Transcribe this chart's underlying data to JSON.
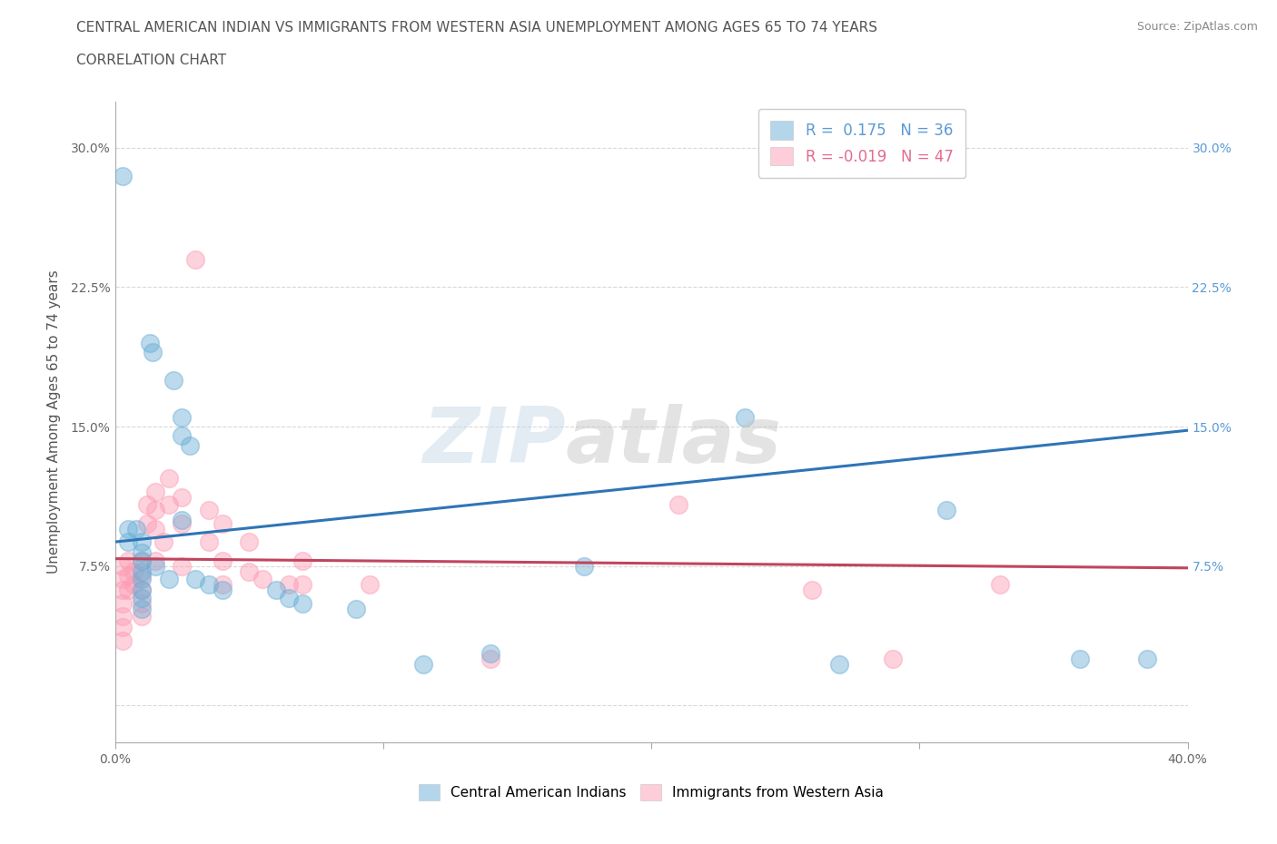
{
  "title_line1": "CENTRAL AMERICAN INDIAN VS IMMIGRANTS FROM WESTERN ASIA UNEMPLOYMENT AMONG AGES 65 TO 74 YEARS",
  "title_line2": "CORRELATION CHART",
  "source_text": "Source: ZipAtlas.com",
  "ylabel": "Unemployment Among Ages 65 to 74 years",
  "xlim": [
    0.0,
    0.4
  ],
  "ylim": [
    -0.02,
    0.325
  ],
  "xticks": [
    0.0,
    0.1,
    0.2,
    0.3,
    0.4
  ],
  "xticklabels": [
    "0.0%",
    "",
    "",
    "",
    "40.0%"
  ],
  "yticks": [
    0.0,
    0.075,
    0.15,
    0.225,
    0.3
  ],
  "yticklabels": [
    "",
    "7.5%",
    "15.0%",
    "22.5%",
    "30.0%"
  ],
  "legend_entries": [
    {
      "label": "R =  0.175   N = 36",
      "color": "#5b9bd5"
    },
    {
      "label": "R = -0.019   N = 47",
      "color": "#e36c8e"
    }
  ],
  "blue_color": "#5b9bd5",
  "pink_color": "#f4a7b9",
  "blue_scatter_color": "#6baed6",
  "pink_scatter_color": "#fc9cb4",
  "blue_line_color": "#2e75b6",
  "pink_line_color": "#c0455e",
  "background_color": "#ffffff",
  "grid_color": "#d0d0d0",
  "blue_scatter": [
    [
      0.003,
      0.285
    ],
    [
      0.013,
      0.195
    ],
    [
      0.014,
      0.19
    ],
    [
      0.022,
      0.175
    ],
    [
      0.025,
      0.155
    ],
    [
      0.025,
      0.145
    ],
    [
      0.025,
      0.1
    ],
    [
      0.028,
      0.14
    ],
    [
      0.005,
      0.095
    ],
    [
      0.005,
      0.088
    ],
    [
      0.008,
      0.095
    ],
    [
      0.01,
      0.088
    ],
    [
      0.01,
      0.082
    ],
    [
      0.01,
      0.078
    ],
    [
      0.01,
      0.072
    ],
    [
      0.01,
      0.068
    ],
    [
      0.01,
      0.062
    ],
    [
      0.01,
      0.058
    ],
    [
      0.01,
      0.052
    ],
    [
      0.015,
      0.075
    ],
    [
      0.02,
      0.068
    ],
    [
      0.03,
      0.068
    ],
    [
      0.035,
      0.065
    ],
    [
      0.04,
      0.062
    ],
    [
      0.06,
      0.062
    ],
    [
      0.065,
      0.058
    ],
    [
      0.07,
      0.055
    ],
    [
      0.09,
      0.052
    ],
    [
      0.115,
      0.022
    ],
    [
      0.14,
      0.028
    ],
    [
      0.175,
      0.075
    ],
    [
      0.235,
      0.155
    ],
    [
      0.27,
      0.022
    ],
    [
      0.31,
      0.105
    ],
    [
      0.36,
      0.025
    ],
    [
      0.385,
      0.025
    ]
  ],
  "pink_scatter": [
    [
      0.003,
      0.075
    ],
    [
      0.003,
      0.068
    ],
    [
      0.003,
      0.062
    ],
    [
      0.003,
      0.055
    ],
    [
      0.003,
      0.048
    ],
    [
      0.003,
      0.042
    ],
    [
      0.003,
      0.035
    ],
    [
      0.005,
      0.078
    ],
    [
      0.005,
      0.07
    ],
    [
      0.005,
      0.062
    ],
    [
      0.007,
      0.072
    ],
    [
      0.007,
      0.065
    ],
    [
      0.01,
      0.078
    ],
    [
      0.01,
      0.07
    ],
    [
      0.01,
      0.062
    ],
    [
      0.01,
      0.055
    ],
    [
      0.01,
      0.048
    ],
    [
      0.012,
      0.108
    ],
    [
      0.012,
      0.098
    ],
    [
      0.015,
      0.115
    ],
    [
      0.015,
      0.105
    ],
    [
      0.015,
      0.095
    ],
    [
      0.015,
      0.078
    ],
    [
      0.018,
      0.088
    ],
    [
      0.02,
      0.122
    ],
    [
      0.02,
      0.108
    ],
    [
      0.025,
      0.112
    ],
    [
      0.025,
      0.098
    ],
    [
      0.025,
      0.075
    ],
    [
      0.03,
      0.24
    ],
    [
      0.035,
      0.105
    ],
    [
      0.035,
      0.088
    ],
    [
      0.04,
      0.098
    ],
    [
      0.04,
      0.078
    ],
    [
      0.04,
      0.065
    ],
    [
      0.05,
      0.088
    ],
    [
      0.05,
      0.072
    ],
    [
      0.055,
      0.068
    ],
    [
      0.065,
      0.065
    ],
    [
      0.07,
      0.078
    ],
    [
      0.07,
      0.065
    ],
    [
      0.095,
      0.065
    ],
    [
      0.14,
      0.025
    ],
    [
      0.21,
      0.108
    ],
    [
      0.26,
      0.062
    ],
    [
      0.29,
      0.025
    ],
    [
      0.33,
      0.065
    ]
  ],
  "blue_regression": {
    "x_start": 0.0,
    "y_start": 0.088,
    "x_end": 0.4,
    "y_end": 0.148
  },
  "pink_regression": {
    "x_start": 0.0,
    "y_start": 0.079,
    "x_end": 0.4,
    "y_end": 0.074
  },
  "title_fontsize": 11,
  "axis_label_fontsize": 11,
  "tick_fontsize": 10,
  "legend_fontsize": 12,
  "scatter_size": 200
}
